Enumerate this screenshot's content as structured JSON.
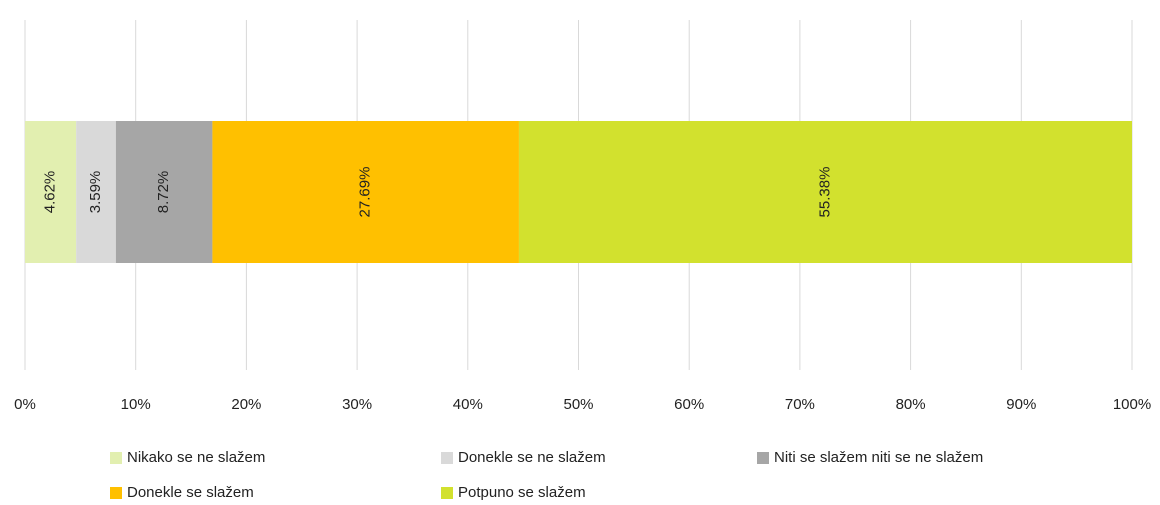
{
  "chart_data": {
    "type": "bar",
    "orientation": "horizontal",
    "stacked": true,
    "grid": true,
    "legend": "bottom",
    "xlim": [
      0,
      100
    ],
    "xticks": [
      {
        "value": 0,
        "label": "0%"
      },
      {
        "value": 10,
        "label": "10%"
      },
      {
        "value": 20,
        "label": "20%"
      },
      {
        "value": 30,
        "label": "30%"
      },
      {
        "value": 40,
        "label": "40%"
      },
      {
        "value": 50,
        "label": "50%"
      },
      {
        "value": 60,
        "label": "60%"
      },
      {
        "value": 70,
        "label": "70%"
      },
      {
        "value": 80,
        "label": "80%"
      },
      {
        "value": 90,
        "label": "90%"
      },
      {
        "value": 100,
        "label": "100%"
      }
    ],
    "series": [
      {
        "name": "Nikako se ne slažem",
        "color": "#e2efb0",
        "values": [
          4.62
        ],
        "value_labels": [
          "4.62%"
        ]
      },
      {
        "name": "Donekle se ne slažem",
        "color": "#d9d9d9",
        "values": [
          3.59
        ],
        "value_labels": [
          "3.59%"
        ]
      },
      {
        "name": "Niti se slažem niti se ne slažem",
        "color": "#a6a6a6",
        "values": [
          8.72
        ],
        "value_labels": [
          "8.72%"
        ]
      },
      {
        "name": "Donekle se slažem",
        "color": "#ffc000",
        "values": [
          27.69
        ],
        "value_labels": [
          "27.69%"
        ]
      },
      {
        "name": "Potpuno se slažem",
        "color": "#d2e12e",
        "values": [
          55.38
        ],
        "value_labels": [
          "55.38%"
        ]
      }
    ]
  }
}
